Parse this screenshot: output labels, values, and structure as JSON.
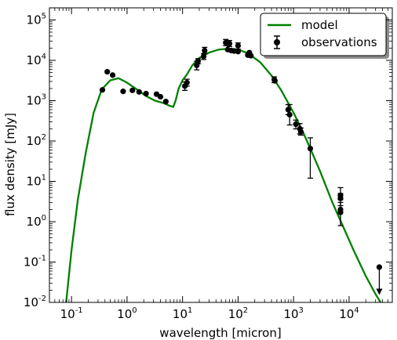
{
  "chart_data": {
    "type": "scatter",
    "xlabel": "wavelength [micron]",
    "ylabel": "flux density [mJy]",
    "xscale": "log",
    "yscale": "log",
    "xlim": [
      0.04,
      60000
    ],
    "ylim": [
      0.01,
      200000
    ],
    "grid": false,
    "legend_placement": "top-right",
    "x_ticks": [
      {
        "base": "10",
        "exp": "-1",
        "value": 0.1
      },
      {
        "base": "10",
        "exp": "0",
        "value": 1
      },
      {
        "base": "10",
        "exp": "1",
        "value": 10
      },
      {
        "base": "10",
        "exp": "2",
        "value": 100
      },
      {
        "base": "10",
        "exp": "3",
        "value": 1000
      },
      {
        "base": "10",
        "exp": "4",
        "value": 10000
      }
    ],
    "y_ticks": [
      {
        "base": "10",
        "exp": "-2",
        "value": 0.01
      },
      {
        "base": "10",
        "exp": "-1",
        "value": 0.1
      },
      {
        "base": "10",
        "exp": "0",
        "value": 1
      },
      {
        "base": "10",
        "exp": "1",
        "value": 10
      },
      {
        "base": "10",
        "exp": "2",
        "value": 100
      },
      {
        "base": "10",
        "exp": "3",
        "value": 1000
      },
      {
        "base": "10",
        "exp": "4",
        "value": 10000
      },
      {
        "base": "10",
        "exp": "5",
        "value": 100000
      }
    ],
    "series": [
      {
        "name": "model",
        "kind": "line",
        "color": "#008000",
        "points": [
          [
            0.08,
            0.01
          ],
          [
            0.1,
            0.2
          ],
          [
            0.13,
            3.5
          ],
          [
            0.18,
            50
          ],
          [
            0.25,
            500
          ],
          [
            0.35,
            1900
          ],
          [
            0.5,
            3200
          ],
          [
            0.7,
            3600
          ],
          [
            1.0,
            2800
          ],
          [
            1.5,
            1900
          ],
          [
            2.2,
            1300
          ],
          [
            3.2,
            1000
          ],
          [
            4.5,
            880
          ],
          [
            5.8,
            750
          ],
          [
            6.8,
            700
          ],
          [
            7.5,
            1000
          ],
          [
            8.5,
            2000
          ],
          [
            10,
            3200
          ],
          [
            12,
            4500
          ],
          [
            15,
            7500
          ],
          [
            20,
            11500
          ],
          [
            30,
            15500
          ],
          [
            45,
            18500
          ],
          [
            70,
            19500
          ],
          [
            100,
            18500
          ],
          [
            150,
            15000
          ],
          [
            250,
            9000
          ],
          [
            400,
            4200
          ],
          [
            600,
            1800
          ],
          [
            1000,
            500
          ],
          [
            1500,
            160
          ],
          [
            2000,
            65
          ],
          [
            3000,
            18
          ],
          [
            5000,
            3
          ],
          [
            8000,
            0.7
          ],
          [
            12000,
            0.2
          ],
          [
            20000,
            0.045
          ],
          [
            30000,
            0.016
          ],
          [
            37000,
            0.01
          ]
        ]
      },
      {
        "name": "observations",
        "kind": "errorbar",
        "color": "#000000",
        "points": [
          {
            "x": 0.36,
            "y": 1850
          },
          {
            "x": 0.44,
            "y": 5200
          },
          {
            "x": 0.55,
            "y": 4300
          },
          {
            "x": 0.85,
            "y": 1700
          },
          {
            "x": 1.25,
            "y": 1800
          },
          {
            "x": 1.65,
            "y": 1650
          },
          {
            "x": 2.2,
            "y": 1500
          },
          {
            "x": 3.4,
            "y": 1450
          },
          {
            "x": 4.0,
            "y": 1250
          },
          {
            "x": 5.0,
            "y": 950
          },
          {
            "x": 11,
            "y": 2300,
            "ylo": 1800,
            "yhi": 2900
          },
          {
            "x": 12,
            "y": 2800,
            "ylo": 2300,
            "yhi": 3400
          },
          {
            "x": 18,
            "y": 7500,
            "ylo": 5800,
            "yhi": 9500
          },
          {
            "x": 19,
            "y": 9500,
            "ylo": 8200,
            "yhi": 11000
          },
          {
            "x": 24,
            "y": 12500,
            "ylo": 10500,
            "yhi": 14500
          },
          {
            "x": 25,
            "y": 17500,
            "ylo": 15000,
            "yhi": 21000
          },
          {
            "x": 60,
            "y": 27500,
            "ylo": 23000,
            "yhi": 33000
          },
          {
            "x": 65,
            "y": 18500
          },
          {
            "x": 70,
            "y": 26000,
            "ylo": 22000,
            "yhi": 31000
          },
          {
            "x": 75,
            "y": 17500
          },
          {
            "x": 85,
            "y": 17000
          },
          {
            "x": 100,
            "y": 23000,
            "ylo": 19000,
            "yhi": 27000
          },
          {
            "x": 100,
            "y": 16500
          },
          {
            "x": 150,
            "y": 13500
          },
          {
            "x": 160,
            "y": 15500
          },
          {
            "x": 170,
            "y": 13000
          },
          {
            "x": 450,
            "y": 3300,
            "ylo": 2800,
            "yhi": 3900
          },
          {
            "x": 460,
            "y": 3100
          },
          {
            "x": 800,
            "y": 600,
            "ylo": 450,
            "yhi": 800
          },
          {
            "x": 850,
            "y": 450,
            "ylo": 250,
            "yhi": 800
          },
          {
            "x": 1100,
            "y": 260,
            "ylo": 200,
            "yhi": 330
          },
          {
            "x": 1300,
            "y": 200,
            "ylo": 150,
            "yhi": 270
          },
          {
            "x": 1350,
            "y": 170,
            "ylo": 140,
            "yhi": 210
          },
          {
            "x": 2000,
            "y": 65,
            "ylo": 12,
            "yhi": 120
          },
          {
            "x": 7000,
            "y": 4.5,
            "ylo": 3.5,
            "yhi": 7
          },
          {
            "x": 7000,
            "y": 3.8,
            "ylo": 2.5,
            "yhi": 5
          },
          {
            "x": 7000,
            "y": 2.0,
            "ylo": 0.8,
            "yhi": 3
          },
          {
            "x": 7000,
            "y": 1.7
          },
          {
            "x": 35000,
            "y": 0.075,
            "upper_limit_to": 0.016
          }
        ]
      }
    ]
  }
}
